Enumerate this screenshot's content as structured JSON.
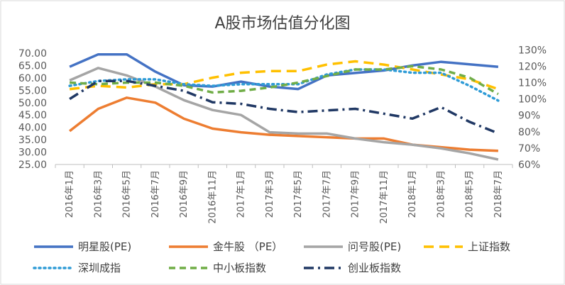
{
  "chart_data": {
    "type": "line",
    "title": "A股市场估值分化图",
    "categories": [
      "2016年1月",
      "2016年3月",
      "2016年5月",
      "2016年7月",
      "2016年9月",
      "2016年11月",
      "2017年1月",
      "2017年3月",
      "2017年5月",
      "2017年7月",
      "2017年9月",
      "2017年11月",
      "2018年1月",
      "2018年3月",
      "2018年5月",
      "2018年7月"
    ],
    "y_left": {
      "ticks": [
        "25.00",
        "30.00",
        "35.00",
        "40.00",
        "45.00",
        "50.00",
        "55.00",
        "60.00",
        "65.00",
        "70.00"
      ],
      "range": [
        25,
        72
      ]
    },
    "y_right": {
      "ticks": [
        "60%",
        "70%",
        "80%",
        "90%",
        "100%",
        "110%",
        "120%",
        "130%"
      ],
      "range": [
        60,
        131
      ]
    },
    "series": [
      {
        "name": "明星股(PE)",
        "axis": "left",
        "color": "#4472C4",
        "dash": "solid",
        "values": [
          64.5,
          69.5,
          69.5,
          62.5,
          57.0,
          56.5,
          58.5,
          56.5,
          55.5,
          61.0,
          62.0,
          63.0,
          65.0,
          66.5,
          65.5,
          64.5
        ]
      },
      {
        "name": "金牛股 （PE）",
        "axis": "left",
        "color": "#ED7D31",
        "dash": "solid",
        "values": [
          38.5,
          47.5,
          52.0,
          50.0,
          43.5,
          39.5,
          38.0,
          37.0,
          36.5,
          36.0,
          35.5,
          35.5,
          33.0,
          32.0,
          31.0,
          30.5
        ]
      },
      {
        "name": "问号股(PE)",
        "axis": "left",
        "color": "#A5A5A5",
        "dash": "solid",
        "values": [
          59.0,
          64.0,
          61.0,
          56.5,
          51.0,
          47.0,
          45.0,
          38.0,
          37.5,
          37.5,
          35.5,
          34.0,
          33.0,
          31.5,
          29.5,
          27.0
        ]
      },
      {
        "name": "上证指数",
        "axis": "right",
        "color": "#FFC000",
        "dash": "long",
        "values": [
          106,
          108,
          107,
          109,
          109,
          113,
          116,
          117,
          117,
          121,
          123,
          121,
          118,
          115,
          112,
          106
        ]
      },
      {
        "name": "深圳成指",
        "axis": "right",
        "color": "#2E9BD6",
        "dash": "dot",
        "values": [
          108,
          111,
          112,
          112,
          109,
          108,
          109,
          109,
          109,
          115,
          118,
          118,
          116,
          116,
          108,
          99
        ]
      },
      {
        "name": "中小板指数",
        "axis": "right",
        "color": "#70AD47",
        "dash": "dash",
        "values": [
          110,
          109,
          110,
          110,
          108,
          104,
          105,
          107,
          110,
          114,
          118,
          118,
          120,
          118,
          113,
          103
        ]
      },
      {
        "name": "创业板指数",
        "axis": "right",
        "color": "#203864",
        "dash": "dashdot",
        "values": [
          100,
          111,
          111,
          108,
          105,
          98,
          97,
          94,
          92,
          93,
          94,
          91,
          88,
          95,
          86,
          79
        ]
      }
    ],
    "legend_position": "bottom",
    "grid": false
  }
}
